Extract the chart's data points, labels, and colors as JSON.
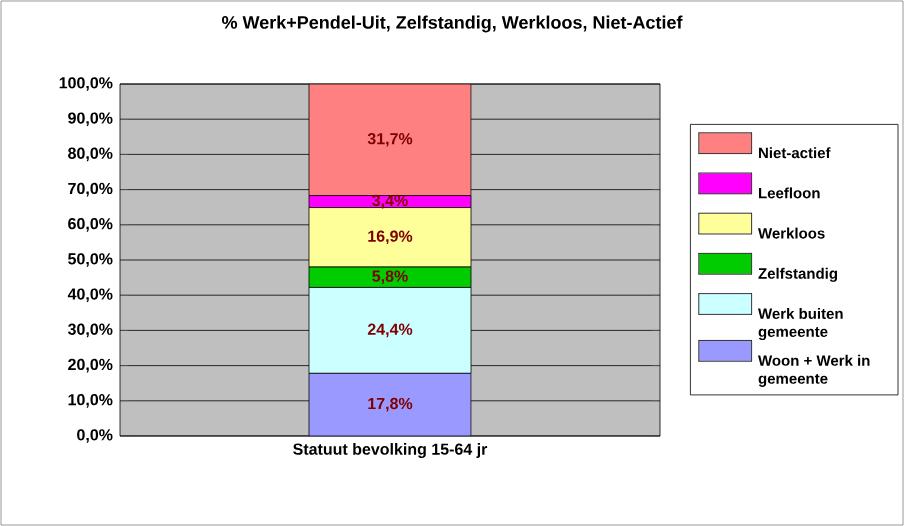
{
  "chart_data": {
    "type": "bar",
    "stacked": true,
    "title": "% Werk+Pendel-Uit, Zelfstandig, Werkloos, Niet-Actief",
    "categories": [
      "Statuut  bevolking 15-64 jr"
    ],
    "series": [
      {
        "name": "Woon + Werk in gemeente",
        "color": "#9999ff",
        "values": [
          17.8
        ],
        "value_labels": [
          "17,8%"
        ]
      },
      {
        "name": "Werk buiten gemeente",
        "color": "#ccffff",
        "values": [
          24.4
        ],
        "value_labels": [
          "24,4%"
        ]
      },
      {
        "name": "Zelfstandig",
        "color": "#00cc00",
        "values": [
          5.8
        ],
        "value_labels": [
          "5,8%"
        ]
      },
      {
        "name": "Werkloos",
        "color": "#ffff99",
        "values": [
          16.9
        ],
        "value_labels": [
          "16,9%"
        ]
      },
      {
        "name": "Leefloon",
        "color": "#ff00ff",
        "values": [
          3.4
        ],
        "value_labels": [
          "3,4%"
        ]
      },
      {
        "name": "Niet-actief",
        "color": "#ff8080",
        "values": [
          31.7
        ],
        "value_labels": [
          "31,7%"
        ]
      }
    ],
    "ylim": [
      0,
      100
    ],
    "yticks": [
      {
        "value": 0,
        "label": "0,0%"
      },
      {
        "value": 10,
        "label": "10,0%"
      },
      {
        "value": 20,
        "label": "20,0%"
      },
      {
        "value": 30,
        "label": "30,0%"
      },
      {
        "value": 40,
        "label": "40,0%"
      },
      {
        "value": 50,
        "label": "50,0%"
      },
      {
        "value": 60,
        "label": "60,0%"
      },
      {
        "value": 70,
        "label": "70,0%"
      },
      {
        "value": 80,
        "label": "80,0%"
      },
      {
        "value": 90,
        "label": "90,0%"
      },
      {
        "value": 100,
        "label": "100,0%"
      }
    ],
    "grid": "y",
    "legend": "right"
  }
}
